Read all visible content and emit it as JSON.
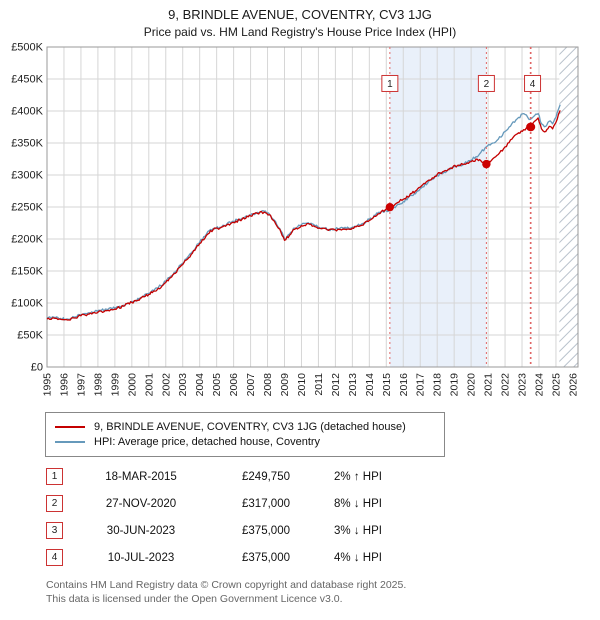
{
  "title": "9, BRINDLE AVENUE, COVENTRY, CV3 1JG",
  "subtitle": "Price paid vs. HM Land Registry's House Price Index (HPI)",
  "colors": {
    "property_line": "#c40000",
    "hpi_line": "#6699bb",
    "marker": "#cc0000",
    "dashed": "#e06666",
    "shade": "#e9f0fa",
    "grid": "#d6d6d6",
    "border": "#999999",
    "hatch": "#b9c2cc",
    "number_box_border": "#cc3333"
  },
  "chart_data": {
    "type": "line",
    "title": "9, BRINDLE AVENUE, COVENTRY, CV3 1JG — Price paid vs. HPI",
    "xlabel": "",
    "ylabel": "",
    "xlim": [
      1995,
      2026.3
    ],
    "ylim": [
      0,
      500000
    ],
    "grid": true,
    "legend_position": "below",
    "x_tick_values": [
      1995,
      1996,
      1997,
      1998,
      1999,
      2000,
      2001,
      2002,
      2003,
      2004,
      2005,
      2006,
      2007,
      2008,
      2009,
      2010,
      2011,
      2012,
      2013,
      2014,
      2015,
      2016,
      2017,
      2018,
      2019,
      2020,
      2021,
      2022,
      2023,
      2024,
      2025,
      2026
    ],
    "x_tick_labels": [
      "1995",
      "1996",
      "1997",
      "1998",
      "1999",
      "2000",
      "2001",
      "2002",
      "2003",
      "2004",
      "2005",
      "2006",
      "2007",
      "2008",
      "2009",
      "2010",
      "2011",
      "2012",
      "2013",
      "2014",
      "2015",
      "2016",
      "2017",
      "2018",
      "2019",
      "2020",
      "2021",
      "2022",
      "2023",
      "2024",
      "2025",
      "2026"
    ],
    "y_tick_values": [
      0,
      50000,
      100000,
      150000,
      200000,
      250000,
      300000,
      350000,
      400000,
      450000,
      500000
    ],
    "y_tick_labels": [
      "£0",
      "£50K",
      "£100K",
      "£150K",
      "£200K",
      "£250K",
      "£300K",
      "£350K",
      "£400K",
      "£450K",
      "£500K"
    ],
    "shade_region": [
      2015.21,
      2020.9
    ],
    "hatch_start": 2025.2,
    "series": [
      {
        "name": "HPI: Average price, detached house, Coventry",
        "color": "#6699bb",
        "points": [
          [
            1995.0,
            76500
          ],
          [
            1995.4,
            78000
          ],
          [
            1995.8,
            76000
          ],
          [
            1996.2,
            75000
          ],
          [
            1996.6,
            78000
          ],
          [
            1997.0,
            81500
          ],
          [
            1997.4,
            84000
          ],
          [
            1997.8,
            86500
          ],
          [
            1998.2,
            88500
          ],
          [
            1998.6,
            90000
          ],
          [
            1999.0,
            92000
          ],
          [
            1999.5,
            96500
          ],
          [
            2000.0,
            102500
          ],
          [
            2000.5,
            108500
          ],
          [
            2001.0,
            115000
          ],
          [
            2001.5,
            123000
          ],
          [
            2002.0,
            134000
          ],
          [
            2002.5,
            148000
          ],
          [
            2003.0,
            162000
          ],
          [
            2003.5,
            178000
          ],
          [
            2004.0,
            195000
          ],
          [
            2004.4,
            208000
          ],
          [
            2004.8,
            216500
          ],
          [
            2005.2,
            218500
          ],
          [
            2005.6,
            223500
          ],
          [
            2006.0,
            227500
          ],
          [
            2006.5,
            232500
          ],
          [
            2007.0,
            237500
          ],
          [
            2007.4,
            241500
          ],
          [
            2007.8,
            243500
          ],
          [
            2008.1,
            239500
          ],
          [
            2008.4,
            229500
          ],
          [
            2008.8,
            212000
          ],
          [
            2009.0,
            200000
          ],
          [
            2009.3,
            208000
          ],
          [
            2009.6,
            217000
          ],
          [
            2010.0,
            222500
          ],
          [
            2010.4,
            225500
          ],
          [
            2010.8,
            220500
          ],
          [
            2011.2,
            217500
          ],
          [
            2011.6,
            215000
          ],
          [
            2012.0,
            215500
          ],
          [
            2012.5,
            217000
          ],
          [
            2013.0,
            218500
          ],
          [
            2013.5,
            222500
          ],
          [
            2014.0,
            230500
          ],
          [
            2014.5,
            240500
          ],
          [
            2015.0,
            244000
          ],
          [
            2015.21,
            245000
          ],
          [
            2015.6,
            252000
          ],
          [
            2016.0,
            258500
          ],
          [
            2016.5,
            268000
          ],
          [
            2017.0,
            278500
          ],
          [
            2017.5,
            290000
          ],
          [
            2018.0,
            299000
          ],
          [
            2018.4,
            304500
          ],
          [
            2018.8,
            310000
          ],
          [
            2019.2,
            314500
          ],
          [
            2019.6,
            317500
          ],
          [
            2020.0,
            323000
          ],
          [
            2020.5,
            333000
          ],
          [
            2020.9,
            344000
          ],
          [
            2021.2,
            349000
          ],
          [
            2021.6,
            356000
          ],
          [
            2022.0,
            368000
          ],
          [
            2022.4,
            380000
          ],
          [
            2022.8,
            390000
          ],
          [
            2023.1,
            396000
          ],
          [
            2023.5,
            387000
          ],
          [
            2023.75,
            393000
          ],
          [
            2023.95,
            396000
          ],
          [
            2024.15,
            380000
          ],
          [
            2024.4,
            376000
          ],
          [
            2024.6,
            384000
          ],
          [
            2024.8,
            380000
          ],
          [
            2025.0,
            390000
          ],
          [
            2025.15,
            403000
          ],
          [
            2025.25,
            410000
          ]
        ]
      },
      {
        "name": "9, BRINDLE AVENUE, COVENTRY, CV3 1JG (detached house)",
        "color": "#c40000",
        "points": [
          [
            1995.0,
            75000
          ],
          [
            1995.4,
            76500
          ],
          [
            1995.8,
            74500
          ],
          [
            1996.2,
            73500
          ],
          [
            1996.6,
            76500
          ],
          [
            1997.0,
            80000
          ],
          [
            1997.4,
            82500
          ],
          [
            1997.8,
            85000
          ],
          [
            1998.2,
            87000
          ],
          [
            1998.6,
            88500
          ],
          [
            1999.0,
            90500
          ],
          [
            1999.5,
            95000
          ],
          [
            2000.0,
            101000
          ],
          [
            2000.5,
            107000
          ],
          [
            2001.0,
            113500
          ],
          [
            2001.5,
            121000
          ],
          [
            2002.0,
            132000
          ],
          [
            2002.5,
            146000
          ],
          [
            2003.0,
            160000
          ],
          [
            2003.5,
            176000
          ],
          [
            2004.0,
            193000
          ],
          [
            2004.4,
            206000
          ],
          [
            2004.8,
            215000
          ],
          [
            2005.2,
            217000
          ],
          [
            2005.6,
            222000
          ],
          [
            2006.0,
            226000
          ],
          [
            2006.5,
            231000
          ],
          [
            2007.0,
            236000
          ],
          [
            2007.4,
            240000
          ],
          [
            2007.8,
            242000
          ],
          [
            2008.1,
            238000
          ],
          [
            2008.4,
            228000
          ],
          [
            2008.8,
            210000
          ],
          [
            2009.0,
            198000
          ],
          [
            2009.3,
            206000
          ],
          [
            2009.6,
            215000
          ],
          [
            2010.0,
            221000
          ],
          [
            2010.4,
            224000
          ],
          [
            2010.8,
            219000
          ],
          [
            2011.2,
            216000
          ],
          [
            2011.6,
            213500
          ],
          [
            2012.0,
            214000
          ],
          [
            2012.5,
            215500
          ],
          [
            2013.0,
            217000
          ],
          [
            2013.5,
            221000
          ],
          [
            2014.0,
            229000
          ],
          [
            2014.5,
            239000
          ],
          [
            2015.0,
            247000
          ],
          [
            2015.21,
            249750
          ],
          [
            2015.6,
            256000
          ],
          [
            2016.0,
            262000
          ],
          [
            2016.5,
            271000
          ],
          [
            2017.0,
            281000
          ],
          [
            2017.5,
            292000
          ],
          [
            2018.0,
            301000
          ],
          [
            2018.4,
            306000
          ],
          [
            2018.8,
            311000
          ],
          [
            2019.2,
            315000
          ],
          [
            2019.6,
            317000
          ],
          [
            2020.0,
            321000
          ],
          [
            2020.5,
            324000
          ],
          [
            2020.9,
            317000
          ],
          [
            2021.2,
            323000
          ],
          [
            2021.6,
            332000
          ],
          [
            2022.0,
            344000
          ],
          [
            2022.4,
            356000
          ],
          [
            2022.8,
            366000
          ],
          [
            2023.1,
            371000
          ],
          [
            2023.5,
            375000
          ],
          [
            2023.75,
            384000
          ],
          [
            2023.95,
            389000
          ],
          [
            2024.15,
            372000
          ],
          [
            2024.4,
            368000
          ],
          [
            2024.6,
            376000
          ],
          [
            2024.8,
            372000
          ],
          [
            2025.0,
            382000
          ],
          [
            2025.15,
            395000
          ],
          [
            2025.25,
            401000
          ]
        ]
      }
    ],
    "sales": [
      {
        "label": "1",
        "date": "18-MAR-2015",
        "x": 2015.21,
        "price": 249750
      },
      {
        "label": "2",
        "date": "27-NOV-2020",
        "x": 2020.9,
        "price": 317000
      },
      {
        "label": "3",
        "date": "30-JUN-2023",
        "x": 2023.49,
        "price": 375000
      },
      {
        "label": "4",
        "date": "10-JUL-2023",
        "x": 2023.53,
        "price": 375000
      }
    ],
    "top_labels": [
      {
        "label": "1",
        "x": 2015.21
      },
      {
        "label": "2",
        "x": 2020.9
      },
      {
        "label": "4",
        "x": 2023.62
      }
    ]
  },
  "legend": {
    "property_label": "9, BRINDLE AVENUE, COVENTRY, CV3 1JG (detached house)",
    "hpi_label": "HPI: Average price, detached house, Coventry"
  },
  "transactions": [
    {
      "num": "1",
      "date": "18-MAR-2015",
      "price": "£249,750",
      "hpi": "2% ↑ HPI"
    },
    {
      "num": "2",
      "date": "27-NOV-2020",
      "price": "£317,000",
      "hpi": "8% ↓ HPI"
    },
    {
      "num": "3",
      "date": "30-JUN-2023",
      "price": "£375,000",
      "hpi": "3% ↓ HPI"
    },
    {
      "num": "4",
      "date": "10-JUL-2023",
      "price": "£375,000",
      "hpi": "4% ↓ HPI"
    }
  ],
  "footer": {
    "line1": "Contains HM Land Registry data © Crown copyright and database right 2025.",
    "line2": "This data is licensed under the Open Government Licence v3.0."
  }
}
